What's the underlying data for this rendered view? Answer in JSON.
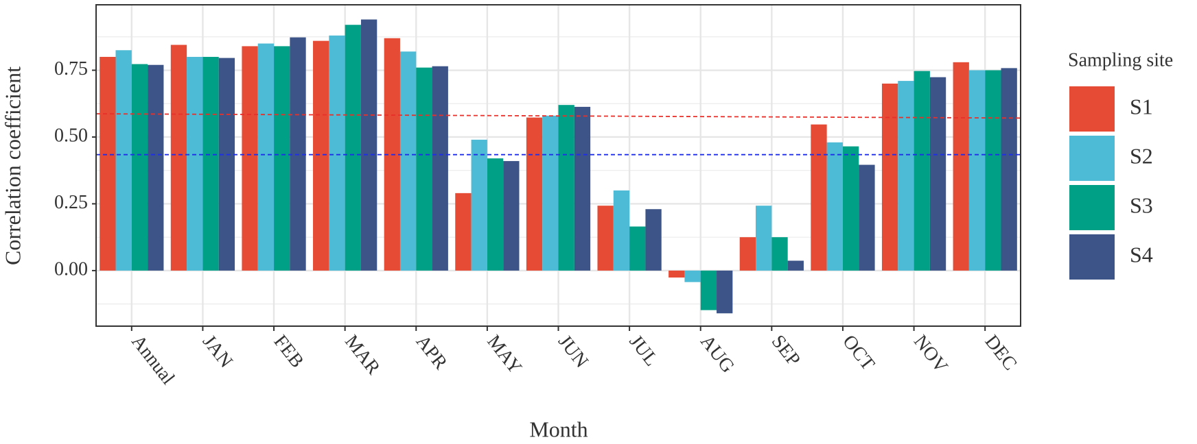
{
  "chart_data": {
    "type": "bar",
    "x_label": "Month",
    "y_label": "Correlation coefficient",
    "legend_title": "Sampling site",
    "categories": [
      "Annual",
      "JAN",
      "FEB",
      "MAR",
      "APR",
      "MAY",
      "JUN",
      "JUL",
      "AUG",
      "SEP",
      "OCT",
      "NOV",
      "DEC"
    ],
    "series": [
      {
        "name": "S1",
        "color": "#E64B35",
        "values": [
          0.8,
          0.845,
          0.84,
          0.86,
          0.87,
          0.29,
          0.573,
          0.243,
          -0.026,
          0.125,
          0.547,
          0.7,
          0.78
        ]
      },
      {
        "name": "S2",
        "color": "#4DBBD5",
        "values": [
          0.825,
          0.8,
          0.85,
          0.88,
          0.82,
          0.49,
          0.58,
          0.3,
          -0.043,
          0.243,
          0.48,
          0.71,
          0.75
        ]
      },
      {
        "name": "S3",
        "color": "#00A087",
        "values": [
          0.773,
          0.8,
          0.84,
          0.92,
          0.76,
          0.42,
          0.62,
          0.165,
          -0.148,
          0.125,
          0.465,
          0.747,
          0.75
        ]
      },
      {
        "name": "S4",
        "color": "#3C5488",
        "values": [
          0.77,
          0.796,
          0.873,
          0.94,
          0.765,
          0.41,
          0.613,
          0.23,
          -0.16,
          0.037,
          0.396,
          0.724,
          0.758
        ]
      }
    ],
    "reference_lines": [
      {
        "color": "#e8302a",
        "values": [
          0.587,
          0.571
        ]
      },
      {
        "color": "#1f2ee8",
        "values": [
          0.434,
          0.434
        ]
      }
    ],
    "ylim": [
      -0.208,
      0.995
    ],
    "yticks": [
      {
        "value": 0,
        "label": "0.00"
      },
      {
        "value": 0.25,
        "label": "0.25"
      },
      {
        "value": 0.5,
        "label": "0.50"
      },
      {
        "value": 0.75,
        "label": "0.75"
      }
    ],
    "grid": true,
    "legend_position": "right"
  }
}
